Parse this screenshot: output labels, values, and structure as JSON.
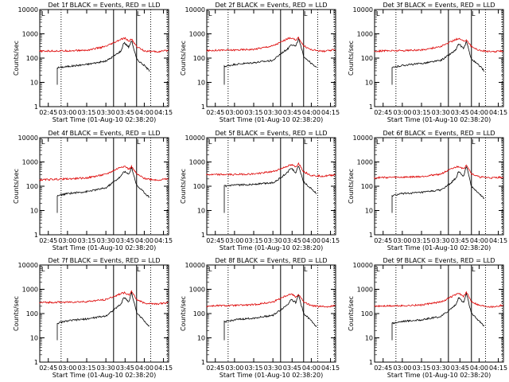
{
  "chart_data": [
    {
      "type": "line",
      "title": "Det 1f BLACK = Events, RED = LLD",
      "xlabel": "Start Time (01-Aug-10 02:38:20)",
      "ylabel": "Counts/sec",
      "ylim": [
        1,
        10000
      ],
      "y_scale": "log",
      "x_range": [
        "02:38:20",
        "04:19:00"
      ],
      "x_ticks": [
        "02:45",
        "03:00",
        "03:15",
        "03:30",
        "03:45",
        "04:00",
        "04:15"
      ],
      "y_ticks": [
        "1",
        "10",
        "100",
        "1000",
        "10000"
      ],
      "corner_marks": [
        "L",
        "L"
      ],
      "dotted_vlines": [
        "02:55",
        "04:05",
        "04:18"
      ],
      "solid_vlines": [
        "03:36",
        "03:54"
      ],
      "series": [
        {
          "name": "BLACK",
          "label": "Events",
          "color": "#000000",
          "x": [
            "02:52",
            "03:00",
            "03:15",
            "03:30",
            "03:36",
            "03:42",
            "03:44",
            "03:48",
            "03:50",
            "03:54",
            "04:00",
            "04:04"
          ],
          "y": [
            40,
            45,
            55,
            75,
            120,
            200,
            450,
            280,
            550,
            90,
            50,
            30
          ]
        },
        {
          "name": "RED",
          "label": "LLD",
          "color": "#dd0000",
          "x": [
            "02:38",
            "02:45",
            "03:00",
            "03:15",
            "03:30",
            "03:36",
            "03:42",
            "03:45",
            "03:48",
            "03:50",
            "03:54",
            "04:00",
            "04:10",
            "04:19"
          ],
          "y": [
            190,
            195,
            200,
            210,
            300,
            420,
            600,
            650,
            500,
            600,
            300,
            200,
            180,
            210
          ]
        }
      ]
    },
    {
      "type": "line",
      "title": "Det 2f BLACK = Events, RED = LLD",
      "xlabel": "Start Time (01-Aug-10 02:38:20)",
      "ylabel": "Counts/sec",
      "ylim": [
        1,
        10000
      ],
      "y_scale": "log",
      "x_range": [
        "02:38:20",
        "04:19:00"
      ],
      "x_ticks": [
        "02:45",
        "03:00",
        "03:15",
        "03:30",
        "03:45",
        "04:00",
        "04:15"
      ],
      "y_ticks": [
        "1",
        "10",
        "100",
        "1000",
        "10000"
      ],
      "corner_marks": [
        "L",
        "L"
      ],
      "dotted_vlines": [
        "02:55",
        "04:05",
        "04:18"
      ],
      "solid_vlines": [
        "03:36",
        "03:54"
      ],
      "series": [
        {
          "name": "BLACK",
          "label": "Events",
          "color": "#000000",
          "x": [
            "02:52",
            "03:00",
            "03:15",
            "03:30",
            "03:36",
            "03:42",
            "03:44",
            "03:48",
            "03:50",
            "03:54",
            "04:00",
            "04:04"
          ],
          "y": [
            45,
            55,
            65,
            80,
            150,
            250,
            380,
            300,
            650,
            120,
            60,
            40
          ]
        },
        {
          "name": "RED",
          "label": "LLD",
          "color": "#dd0000",
          "x": [
            "02:38",
            "02:45",
            "03:00",
            "03:15",
            "03:30",
            "03:36",
            "03:42",
            "03:45",
            "03:48",
            "03:50",
            "03:54",
            "04:00",
            "04:10",
            "04:19"
          ],
          "y": [
            200,
            210,
            215,
            230,
            320,
            450,
            650,
            680,
            520,
            700,
            320,
            220,
            190,
            220
          ]
        }
      ]
    },
    {
      "type": "line",
      "title": "Det 3f BLACK = Events, RED = LLD",
      "xlabel": "Start Time (01-Aug-10 02:38:20)",
      "ylabel": "Counts/sec",
      "ylim": [
        1,
        10000
      ],
      "y_scale": "log",
      "x_range": [
        "02:38:20",
        "04:19:00"
      ],
      "x_ticks": [
        "02:45",
        "03:00",
        "03:15",
        "03:30",
        "03:45",
        "04:00",
        "04:15"
      ],
      "y_ticks": [
        "1",
        "10",
        "100",
        "1000",
        "10000"
      ],
      "corner_marks": [
        "L",
        "L"
      ],
      "dotted_vlines": [
        "02:55",
        "04:05",
        "04:18"
      ],
      "solid_vlines": [
        "03:36",
        "03:54"
      ],
      "series": [
        {
          "name": "BLACK",
          "label": "Events",
          "color": "#000000",
          "x": [
            "02:52",
            "03:00",
            "03:15",
            "03:30",
            "03:36",
            "03:42",
            "03:44",
            "03:48",
            "03:50",
            "03:54",
            "04:00",
            "04:04"
          ],
          "y": [
            40,
            50,
            60,
            80,
            130,
            220,
            380,
            250,
            480,
            90,
            50,
            30
          ]
        },
        {
          "name": "RED",
          "label": "LLD",
          "color": "#dd0000",
          "x": [
            "02:38",
            "02:45",
            "03:00",
            "03:15",
            "03:30",
            "03:36",
            "03:42",
            "03:45",
            "03:48",
            "03:50",
            "03:54",
            "04:00",
            "04:10",
            "04:19"
          ],
          "y": [
            190,
            200,
            205,
            215,
            300,
            420,
            600,
            620,
            480,
            580,
            300,
            210,
            180,
            200
          ]
        }
      ]
    },
    {
      "type": "line",
      "title": "Det 4f BLACK = Events, RED = LLD",
      "xlabel": "Start Time (01-Aug-10 02:38:20)",
      "ylabel": "Counts/sec",
      "ylim": [
        1,
        10000
      ],
      "y_scale": "log",
      "x_range": [
        "02:38:20",
        "04:19:00"
      ],
      "x_ticks": [
        "02:45",
        "03:00",
        "03:15",
        "03:30",
        "03:45",
        "04:00",
        "04:15"
      ],
      "y_ticks": [
        "1",
        "10",
        "100",
        "1000",
        "10000"
      ],
      "corner_marks": [
        "L",
        "L"
      ],
      "dotted_vlines": [
        "02:55",
        "04:05",
        "04:18"
      ],
      "solid_vlines": [
        "03:36",
        "03:54"
      ],
      "series": [
        {
          "name": "BLACK",
          "label": "Events",
          "color": "#000000",
          "x": [
            "02:52",
            "03:00",
            "03:15",
            "03:30",
            "03:36",
            "03:42",
            "03:44",
            "03:48",
            "03:50",
            "03:54",
            "04:00",
            "04:04"
          ],
          "y": [
            40,
            50,
            60,
            85,
            150,
            260,
            420,
            300,
            620,
            110,
            55,
            35
          ]
        },
        {
          "name": "RED",
          "label": "LLD",
          "color": "#dd0000",
          "x": [
            "02:38",
            "02:45",
            "03:00",
            "03:15",
            "03:30",
            "03:36",
            "03:42",
            "03:45",
            "03:48",
            "03:50",
            "03:54",
            "04:00",
            "04:10",
            "04:19"
          ],
          "y": [
            180,
            190,
            200,
            220,
            310,
            440,
            640,
            660,
            500,
            650,
            320,
            210,
            180,
            200
          ]
        }
      ]
    },
    {
      "type": "line",
      "title": "Det 5f BLACK = Events, RED = LLD",
      "xlabel": "Start Time (01-Aug-10 02:38:20)",
      "ylabel": "Counts/sec",
      "ylim": [
        1,
        10000
      ],
      "y_scale": "log",
      "x_range": [
        "02:38:20",
        "04:19:00"
      ],
      "x_ticks": [
        "02:45",
        "03:00",
        "03:15",
        "03:30",
        "03:45",
        "04:00",
        "04:15"
      ],
      "y_ticks": [
        "1",
        "10",
        "100",
        "1000",
        "10000"
      ],
      "corner_marks": [
        "L",
        "L"
      ],
      "dotted_vlines": [
        "02:55",
        "04:05",
        "04:18"
      ],
      "solid_vlines": [
        "03:36",
        "03:54"
      ],
      "series": [
        {
          "name": "BLACK",
          "label": "Events",
          "color": "#000000",
          "x": [
            "02:52",
            "03:00",
            "03:15",
            "03:30",
            "03:36",
            "03:42",
            "03:44",
            "03:48",
            "03:50",
            "03:54",
            "04:00",
            "04:04"
          ],
          "y": [
            100,
            110,
            120,
            140,
            220,
            400,
            580,
            350,
            700,
            150,
            80,
            50
          ]
        },
        {
          "name": "RED",
          "label": "LLD",
          "color": "#dd0000",
          "x": [
            "02:38",
            "02:45",
            "03:00",
            "03:15",
            "03:30",
            "03:36",
            "03:42",
            "03:45",
            "03:48",
            "03:50",
            "03:54",
            "04:00",
            "04:10",
            "04:19"
          ],
          "y": [
            300,
            300,
            305,
            320,
            400,
            520,
            700,
            750,
            600,
            900,
            400,
            280,
            260,
            300
          ]
        }
      ]
    },
    {
      "type": "line",
      "title": "Det 6f BLACK = Events, RED = LLD",
      "xlabel": "Start Time (01-Aug-10 02:38:20)",
      "ylabel": "Counts/sec",
      "ylim": [
        1,
        10000
      ],
      "y_scale": "log",
      "x_range": [
        "02:38:20",
        "04:19:00"
      ],
      "x_ticks": [
        "02:45",
        "03:00",
        "03:15",
        "03:30",
        "03:45",
        "04:00",
        "04:15"
      ],
      "y_ticks": [
        "1",
        "10",
        "100",
        "1000",
        "10000"
      ],
      "corner_marks": [
        "L",
        "L"
      ],
      "dotted_vlines": [
        "02:55",
        "04:05",
        "04:18"
      ],
      "solid_vlines": [
        "03:36",
        "03:54"
      ],
      "series": [
        {
          "name": "BLACK",
          "label": "Events",
          "color": "#000000",
          "x": [
            "02:52",
            "03:00",
            "03:15",
            "03:30",
            "03:36",
            "03:42",
            "03:44",
            "03:48",
            "03:50",
            "03:54",
            "04:00",
            "04:04"
          ],
          "y": [
            40,
            50,
            55,
            70,
            110,
            220,
            400,
            250,
            700,
            100,
            50,
            30
          ]
        },
        {
          "name": "RED",
          "label": "LLD",
          "color": "#dd0000",
          "x": [
            "02:38",
            "02:45",
            "03:00",
            "03:15",
            "03:30",
            "03:36",
            "03:42",
            "03:45",
            "03:48",
            "03:50",
            "03:54",
            "04:00",
            "04:10",
            "04:19"
          ],
          "y": [
            220,
            230,
            235,
            250,
            320,
            450,
            620,
            650,
            500,
            800,
            330,
            240,
            220,
            240
          ]
        }
      ]
    },
    {
      "type": "line",
      "title": "Det 7f BLACK = Events, RED = LLD",
      "xlabel": "Start Time (01-Aug-10 02:38:20)",
      "ylabel": "Counts/sec",
      "ylim": [
        1,
        10000
      ],
      "y_scale": "log",
      "x_range": [
        "02:38:20",
        "04:19:00"
      ],
      "x_ticks": [
        "02:45",
        "03:00",
        "03:15",
        "03:30",
        "03:45",
        "04:00",
        "04:15"
      ],
      "y_ticks": [
        "1",
        "10",
        "100",
        "1000",
        "10000"
      ],
      "corner_marks": [
        "L",
        "L"
      ],
      "dotted_vlines": [
        "02:55",
        "04:05",
        "04:18"
      ],
      "solid_vlines": [
        "03:36",
        "03:54"
      ],
      "series": [
        {
          "name": "BLACK",
          "label": "Events",
          "color": "#000000",
          "x": [
            "02:52",
            "03:00",
            "03:15",
            "03:30",
            "03:36",
            "03:42",
            "03:44",
            "03:48",
            "03:50",
            "03:54",
            "04:00",
            "04:04"
          ],
          "y": [
            40,
            50,
            60,
            80,
            140,
            250,
            480,
            300,
            750,
            110,
            50,
            30
          ]
        },
        {
          "name": "RED",
          "label": "LLD",
          "color": "#dd0000",
          "x": [
            "02:38",
            "02:45",
            "03:00",
            "03:15",
            "03:30",
            "03:36",
            "03:42",
            "03:45",
            "03:48",
            "03:50",
            "03:54",
            "04:00",
            "04:10",
            "04:19"
          ],
          "y": [
            280,
            290,
            295,
            310,
            380,
            500,
            680,
            720,
            560,
            850,
            380,
            270,
            250,
            280
          ]
        }
      ]
    },
    {
      "type": "line",
      "title": "Det 8f BLACK = Events, RED = LLD",
      "xlabel": "Start Time (01-Aug-10 02:38:20)",
      "ylabel": "Counts/sec",
      "ylim": [
        1,
        10000
      ],
      "y_scale": "log",
      "x_range": [
        "02:38:20",
        "04:19:00"
      ],
      "x_ticks": [
        "02:45",
        "03:00",
        "03:15",
        "03:30",
        "03:45",
        "04:00",
        "04:15"
      ],
      "y_ticks": [
        "1",
        "10",
        "100",
        "1000",
        "10000"
      ],
      "corner_marks": [
        "L",
        "L"
      ],
      "dotted_vlines": [
        "02:55",
        "04:05",
        "04:18"
      ],
      "solid_vlines": [
        "03:36",
        "03:54"
      ],
      "series": [
        {
          "name": "BLACK",
          "label": "Events",
          "color": "#000000",
          "x": [
            "02:52",
            "03:00",
            "03:15",
            "03:30",
            "03:36",
            "03:42",
            "03:44",
            "03:48",
            "03:50",
            "03:54",
            "04:00",
            "04:04"
          ],
          "y": [
            45,
            55,
            65,
            85,
            140,
            250,
            400,
            280,
            600,
            100,
            50,
            30
          ]
        },
        {
          "name": "RED",
          "label": "LLD",
          "color": "#dd0000",
          "x": [
            "02:38",
            "02:45",
            "03:00",
            "03:15",
            "03:30",
            "03:36",
            "03:42",
            "03:45",
            "03:48",
            "03:50",
            "03:54",
            "04:00",
            "04:10",
            "04:19"
          ],
          "y": [
            200,
            210,
            215,
            230,
            300,
            430,
            600,
            630,
            480,
            620,
            300,
            210,
            190,
            210
          ]
        }
      ]
    },
    {
      "type": "line",
      "title": "Det 9f BLACK = Events, RED = LLD",
      "xlabel": "Start Time (01-Aug-10 02:38:20)",
      "ylabel": "Counts/sec",
      "ylim": [
        1,
        10000
      ],
      "y_scale": "log",
      "x_range": [
        "02:38:20",
        "04:19:00"
      ],
      "x_ticks": [
        "02:45",
        "03:00",
        "03:15",
        "03:30",
        "03:45",
        "04:00",
        "04:15"
      ],
      "y_ticks": [
        "1",
        "10",
        "100",
        "1000",
        "10000"
      ],
      "corner_marks": [
        "L",
        "L"
      ],
      "dotted_vlines": [
        "02:55",
        "04:05",
        "04:18"
      ],
      "solid_vlines": [
        "03:36",
        "03:54"
      ],
      "series": [
        {
          "name": "BLACK",
          "label": "Events",
          "color": "#000000",
          "x": [
            "02:52",
            "03:00",
            "03:15",
            "03:30",
            "03:36",
            "03:42",
            "03:44",
            "03:48",
            "03:50",
            "03:54",
            "04:00",
            "04:04"
          ],
          "y": [
            40,
            48,
            55,
            75,
            130,
            240,
            450,
            280,
            700,
            100,
            50,
            30
          ]
        },
        {
          "name": "RED",
          "label": "LLD",
          "color": "#dd0000",
          "x": [
            "02:38",
            "02:45",
            "03:00",
            "03:15",
            "03:30",
            "03:36",
            "03:42",
            "03:45",
            "03:48",
            "03:50",
            "03:54",
            "04:00",
            "04:10",
            "04:19"
          ],
          "y": [
            200,
            205,
            210,
            225,
            300,
            420,
            620,
            650,
            500,
            750,
            320,
            220,
            190,
            220
          ]
        }
      ]
    }
  ]
}
